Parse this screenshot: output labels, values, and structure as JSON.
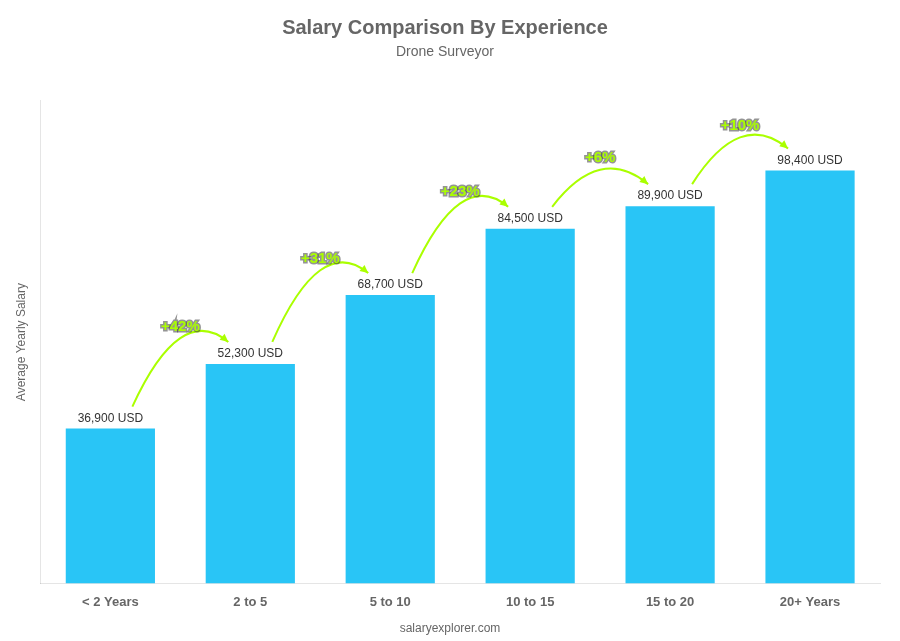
{
  "chart_data": {
    "type": "bar",
    "title": "Salary Comparison By Experience",
    "subtitle": "Drone Surveyor",
    "y_label": "Average Yearly Salary",
    "categories": [
      "< 2 Years",
      "2 to 5",
      "5 to 10",
      "10 to 15",
      "15 to 20",
      "20+ Years"
    ],
    "values": [
      36900,
      52300,
      68700,
      84500,
      89900,
      98400
    ],
    "value_labels": [
      "36,900 USD",
      "52,300 USD",
      "68,700 USD",
      "84,500 USD",
      "89,900 USD",
      "98,400 USD"
    ],
    "data_labels": true,
    "color": "#29c5f6",
    "ylim": [
      0,
      115000
    ],
    "grid": false,
    "tick_labels": "x",
    "annotations": [
      {
        "text": "+42%",
        "color": "#aaff00"
      },
      {
        "text": "+31%",
        "color": "#aaff00"
      },
      {
        "text": "+23%",
        "color": "#aaff00"
      },
      {
        "text": "+6%",
        "color": "#aaff00"
      },
      {
        "text": "+10%",
        "color": "#aaff00"
      }
    ],
    "watermark": "salaryexplorer.com"
  }
}
